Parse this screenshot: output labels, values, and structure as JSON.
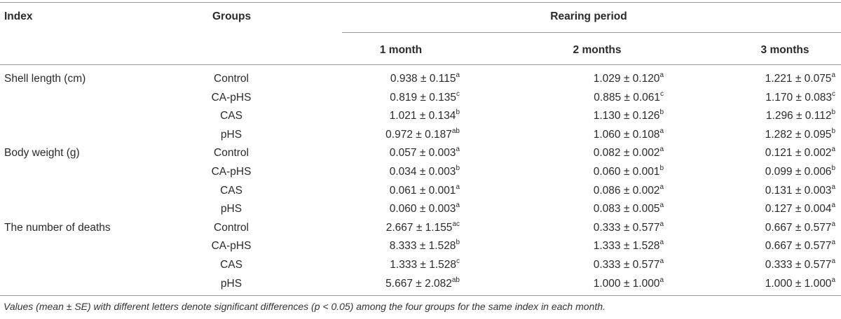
{
  "headers": {
    "index": "Index",
    "groups": "Groups",
    "rearing_period": "Rearing period",
    "months": [
      "1 month",
      "2 months",
      "3 months"
    ]
  },
  "rows": [
    {
      "index": "Shell length (cm)",
      "group": "Control",
      "m1": "0.938 ± 0.115",
      "m1s": "a",
      "m2": "1.029 ± 0.120",
      "m2s": "a",
      "m3": "1.221 ± 0.075",
      "m3s": "a"
    },
    {
      "index": "",
      "group": "CA-pHS",
      "m1": "0.819 ± 0.135",
      "m1s": "c",
      "m2": "0.885 ± 0.061",
      "m2s": "c",
      "m3": "1.170 ± 0.083",
      "m3s": "c"
    },
    {
      "index": "",
      "group": "CAS",
      "m1": "1.021 ± 0.134",
      "m1s": "b",
      "m2": "1.130 ± 0.126",
      "m2s": "b",
      "m3": "1.296 ± 0.112",
      "m3s": "b"
    },
    {
      "index": "",
      "group": "pHS",
      "m1": "0.972 ± 0.187",
      "m1s": "ab",
      "m2": "1.060 ± 0.108",
      "m2s": "a",
      "m3": "1.282 ± 0.095",
      "m3s": "b"
    },
    {
      "index": "Body weight (g)",
      "group": "Control",
      "m1": "0.057 ± 0.003",
      "m1s": "a",
      "m2": "0.082 ± 0.002",
      "m2s": "a",
      "m3": "0.121 ± 0.002",
      "m3s": "a"
    },
    {
      "index": "",
      "group": "CA-pHS",
      "m1": "0.034 ± 0.003",
      "m1s": "b",
      "m2": "0.060 ± 0.001",
      "m2s": "b",
      "m3": "0.099 ± 0.006",
      "m3s": "b"
    },
    {
      "index": "",
      "group": "CAS",
      "m1": "0.061 ± 0.001",
      "m1s": "a",
      "m2": "0.086 ± 0.002",
      "m2s": "a",
      "m3": "0.131 ± 0.003",
      "m3s": "a"
    },
    {
      "index": "",
      "group": "pHS",
      "m1": "0.060 ± 0.003",
      "m1s": "a",
      "m2": "0.083 ± 0.005",
      "m2s": "a",
      "m3": "0.127 ± 0.004",
      "m3s": "a"
    },
    {
      "index": "The number of deaths",
      "group": "Control",
      "m1": "2.667 ± 1.155",
      "m1s": "ac",
      "m2": "0.333 ± 0.577",
      "m2s": "a",
      "m3": "0.667 ± 0.577",
      "m3s": "a"
    },
    {
      "index": "",
      "group": "CA-pHS",
      "m1": "8.333 ± 1.528",
      "m1s": "b",
      "m2": "1.333 ± 1.528",
      "m2s": "a",
      "m3": "0.667 ± 0.577",
      "m3s": "a"
    },
    {
      "index": "",
      "group": "CAS",
      "m1": "1.333 ± 1.528",
      "m1s": "c",
      "m2": "0.333 ± 0.577",
      "m2s": "a",
      "m3": "0.333 ± 0.577",
      "m3s": "a"
    },
    {
      "index": "",
      "group": "pHS",
      "m1": "5.667 ± 2.082",
      "m1s": "ab",
      "m2": "1.000 ± 1.000",
      "m2s": "a",
      "m3": "1.000 ± 1.000",
      "m3s": "a"
    }
  ],
  "footnote": "Values (mean ± SE) with different letters denote significant differences (p < 0.05) among the four groups for the same index in each month."
}
